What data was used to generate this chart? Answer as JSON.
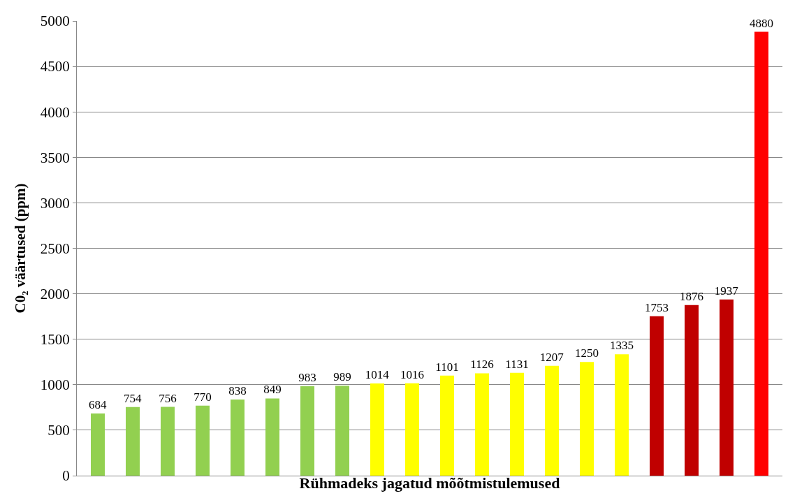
{
  "chart_data": {
    "type": "bar",
    "xlabel": "Rühmadeks jagatud mõõtmistulemused",
    "ylabel": "C0₂ väärtused (ppm)",
    "categories": [
      null,
      null,
      null,
      null,
      null,
      null,
      null,
      null,
      null,
      null,
      null,
      null,
      null,
      null,
      null,
      null,
      null,
      null,
      null,
      null
    ],
    "values": [
      684,
      754,
      756,
      770,
      838,
      849,
      983,
      989,
      1014,
      1016,
      1101,
      1126,
      1131,
      1207,
      1250,
      1335,
      1753,
      1876,
      1937,
      4880
    ],
    "colors": [
      "#92d050",
      "#92d050",
      "#92d050",
      "#92d050",
      "#92d050",
      "#92d050",
      "#92d050",
      "#92d050",
      "#ffff00",
      "#ffff00",
      "#ffff00",
      "#ffff00",
      "#ffff00",
      "#ffff00",
      "#ffff00",
      "#ffff00",
      "#c00000",
      "#c00000",
      "#c00000",
      "#ff0000"
    ],
    "ylim": [
      0,
      5000
    ],
    "yticks": [
      0,
      500,
      1000,
      1500,
      2000,
      2500,
      3000,
      3500,
      4000,
      4500,
      5000
    ],
    "grid": "y",
    "data_labels": true,
    "tick_labels": "y"
  }
}
